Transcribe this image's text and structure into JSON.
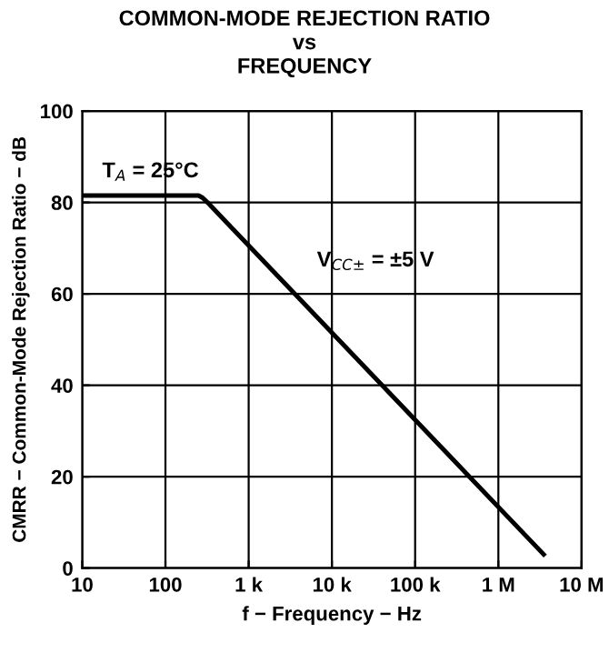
{
  "chart_data": {
    "type": "line",
    "title": "COMMON-MODE REJECTION RATIO\nvs\nFREQUENCY",
    "xlabel": "f − Frequency − Hz",
    "ylabel": "CMRR − Common-Mode Rejection Ratio − dB",
    "annotations": [
      "T$_{A}$ = 25°C",
      "V$_{CC±}$ = ±5 V"
    ],
    "series": [
      {
        "color": "#000000",
        "x": [
          10,
          250,
          280,
          320,
          3500000
        ],
        "values": [
          81.5,
          81.5,
          81,
          80,
          3
        ]
      }
    ],
    "log": "x",
    "xlim": [
      10,
      10000000
    ],
    "ylim": [
      0,
      100
    ],
    "xticks": [
      10,
      100,
      {
        "value": 1000,
        "label": "1 k"
      },
      {
        "value": 10000,
        "label": "10 k"
      },
      {
        "value": 100000,
        "label": "100 k"
      },
      {
        "value": 1000000,
        "label": "1 M"
      },
      {
        "value": 10000000,
        "label": "10 M"
      }
    ],
    "yticks": [
      0,
      20,
      40,
      60,
      80,
      100
    ],
    "grid": true,
    "line_style": "solid",
    "marker": "none"
  }
}
